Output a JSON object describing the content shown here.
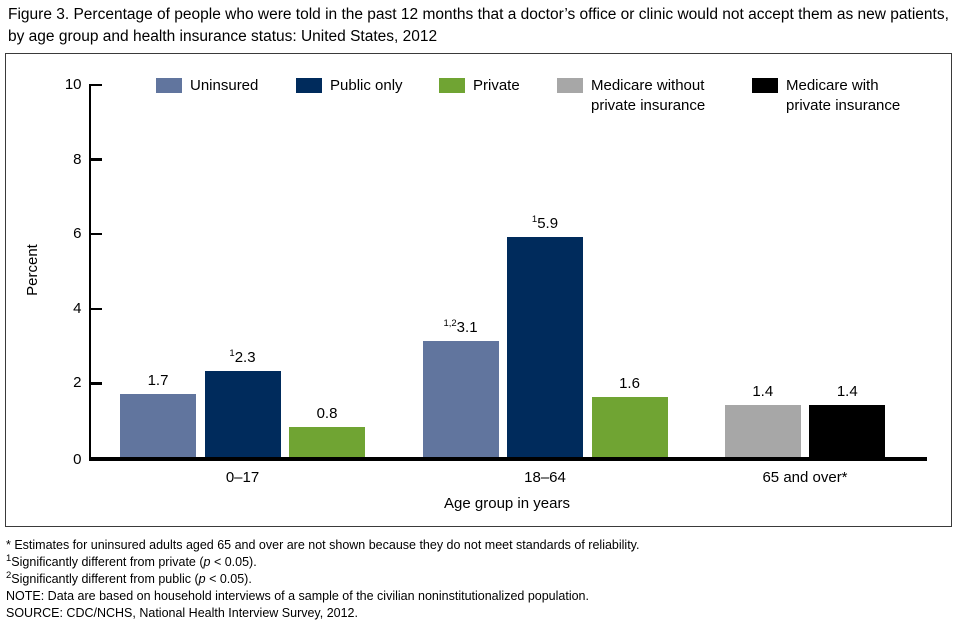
{
  "figure": {
    "title": "Figure 3. Percentage of people who were told in the past 12 months that a doctor’s office or clinic would not accept them as new patients, by age group and health insurance status: United States, 2012"
  },
  "chart_data": {
    "type": "bar",
    "title": "Percentage of people told a doctor’s office or clinic would not accept them as new patients, by age group and health insurance status",
    "xlabel": "Age group in years",
    "ylabel": "Percent",
    "ylim": [
      0,
      10
    ],
    "yticks": [
      0,
      2,
      4,
      6,
      8,
      10
    ],
    "grid": false,
    "legend_position": "top",
    "categories": [
      "0–17",
      "18–64",
      "65 and over*"
    ],
    "series": [
      {
        "name": "Uninsured",
        "color": "#61759E",
        "values": [
          1.7,
          3.1,
          null
        ],
        "sups": [
          null,
          "1,2",
          null
        ]
      },
      {
        "name": "Public only",
        "color": "#002B5C",
        "values": [
          2.3,
          5.9,
          null
        ],
        "sups": [
          "1",
          "1",
          null
        ]
      },
      {
        "name": "Private",
        "color": "#70A433",
        "values": [
          0.8,
          1.6,
          null
        ],
        "sups": [
          null,
          null,
          null
        ]
      },
      {
        "name": "Medicare without private insurance",
        "color": "#A7A7A7",
        "values": [
          null,
          null,
          1.4
        ],
        "sups": [
          null,
          null,
          null
        ]
      },
      {
        "name": "Medicare with private insurance",
        "color": "#000000",
        "values": [
          null,
          null,
          1.4
        ],
        "sups": [
          null,
          null,
          null
        ]
      }
    ]
  },
  "footnotes": [
    [
      {
        "text": "* Estimates for uninsured adults aged 65 and over are not shown because they do not meet standards of reliability."
      }
    ],
    [
      {
        "text": "1",
        "sup": true
      },
      {
        "text": "Significantly different from private ("
      },
      {
        "text": "p",
        "italic": true
      },
      {
        "text": " < 0.05)."
      }
    ],
    [
      {
        "text": "2",
        "sup": true
      },
      {
        "text": "Significantly different from public ("
      },
      {
        "text": "p",
        "italic": true
      },
      {
        "text": " < 0.05)."
      }
    ],
    [
      {
        "text": "NOTE: Data are based on household interviews of a sample of the civilian noninstitutionalized population."
      }
    ],
    [
      {
        "text": "SOURCE: CDC/NCHS, National Health Interview Survey, 2012."
      }
    ]
  ]
}
